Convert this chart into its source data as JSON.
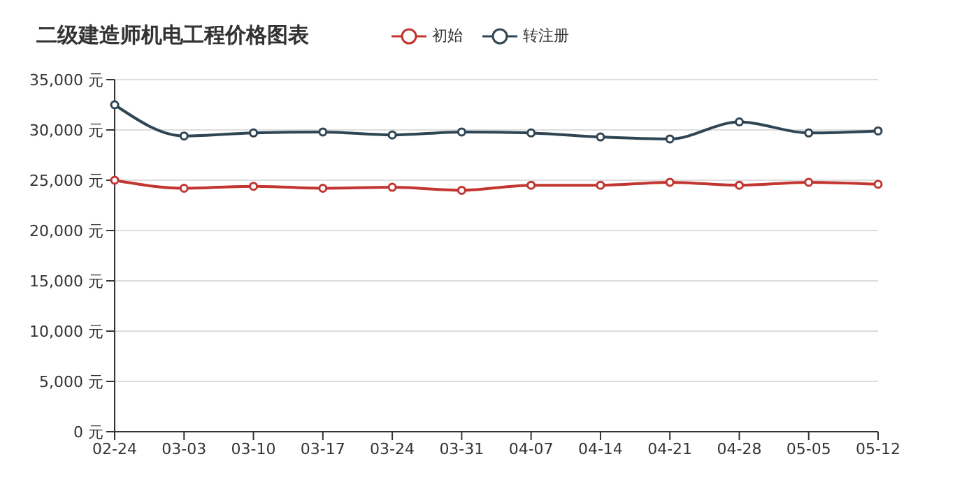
{
  "chart_data": {
    "type": "line",
    "title": "二级建造师机电工程价格图表",
    "categories": [
      "02-24",
      "03-03",
      "03-10",
      "03-17",
      "03-24",
      "03-31",
      "04-07",
      "04-14",
      "04-21",
      "04-28",
      "05-05",
      "05-12"
    ],
    "series": [
      {
        "name": "初始",
        "color": "#c23531",
        "values": [
          25000,
          24200,
          24400,
          24200,
          24300,
          24000,
          24500,
          24500,
          24800,
          24500,
          24800,
          24600
        ]
      },
      {
        "name": "转注册",
        "color": "#2f4554",
        "values": [
          32500,
          29400,
          29700,
          29800,
          29500,
          29800,
          29700,
          29300,
          29100,
          30800,
          29700,
          29900
        ]
      }
    ],
    "ylim": [
      0,
      35000
    ],
    "yticks": [
      {
        "value": 0,
        "label": "0 元"
      },
      {
        "value": 5000,
        "label": "5,000 元"
      },
      {
        "value": 10000,
        "label": "10,000 元"
      },
      {
        "value": 15000,
        "label": "15,000 元"
      },
      {
        "value": 20000,
        "label": "20,000 元"
      },
      {
        "value": 25000,
        "label": "25,000 元"
      },
      {
        "value": 30000,
        "label": "30,000 元"
      },
      {
        "value": 35000,
        "label": "35,000 元"
      }
    ],
    "grid": "y",
    "legend": "top",
    "marker": "circle"
  }
}
